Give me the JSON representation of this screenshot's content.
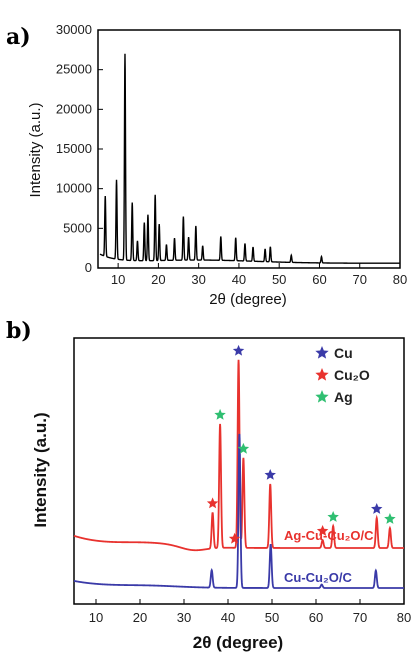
{
  "chart_data": [
    {
      "panel": "a)",
      "type": "line",
      "xlabel": "2θ (degree)",
      "ylabel": "Intensity (a.u.)",
      "xlim": [
        5,
        80
      ],
      "ylim": [
        0,
        30000
      ],
      "xticks": [
        10,
        20,
        30,
        40,
        50,
        60,
        70,
        80
      ],
      "yticks": [
        0,
        5000,
        10000,
        15000,
        20000,
        25000,
        30000
      ],
      "series": [
        {
          "color": "#000000",
          "peaks": [
            {
              "x": 6.8,
              "y": 7600
            },
            {
              "x": 9.6,
              "y": 10000
            },
            {
              "x": 11.7,
              "y": 26000
            },
            {
              "x": 13.5,
              "y": 7300
            },
            {
              "x": 14.8,
              "y": 2500
            },
            {
              "x": 16.5,
              "y": 4800
            },
            {
              "x": 17.4,
              "y": 5800
            },
            {
              "x": 19.2,
              "y": 8300
            },
            {
              "x": 20.2,
              "y": 4600
            },
            {
              "x": 22.0,
              "y": 2000
            },
            {
              "x": 24.0,
              "y": 2800
            },
            {
              "x": 26.2,
              "y": 5500
            },
            {
              "x": 27.5,
              "y": 2900
            },
            {
              "x": 29.3,
              "y": 4300
            },
            {
              "x": 31.0,
              "y": 1800
            },
            {
              "x": 35.5,
              "y": 3000
            },
            {
              "x": 39.2,
              "y": 2900
            },
            {
              "x": 41.5,
              "y": 2200
            },
            {
              "x": 43.5,
              "y": 1800
            },
            {
              "x": 46.5,
              "y": 1600
            },
            {
              "x": 47.8,
              "y": 1900
            },
            {
              "x": 53.0,
              "y": 900
            },
            {
              "x": 60.5,
              "y": 800
            }
          ]
        }
      ]
    },
    {
      "panel": "b)",
      "type": "line",
      "xlabel": "2θ (degree)",
      "ylabel": "Intensity (a.u.)",
      "xlim": [
        5,
        80
      ],
      "xticks": [
        10,
        20,
        30,
        40,
        50,
        60,
        70,
        80
      ],
      "legend_position": "top-right",
      "legend": [
        {
          "label": "Cu",
          "color": "#3a3aa8"
        },
        {
          "label": "Cu₂O",
          "color": "#e8322e"
        },
        {
          "label": "Ag",
          "color": "#2fbf71"
        }
      ],
      "series": [
        {
          "name": "Ag-Cu-Cu₂O/C",
          "color": "#e8322e",
          "peaks": [
            {
              "x": 36.5,
              "y": 0.18
            },
            {
              "x": 38.2,
              "y": 0.62
            },
            {
              "x": 42.4,
              "y": 0.94
            },
            {
              "x": 43.5,
              "y": 0.45
            },
            {
              "x": 49.6,
              "y": 0.32
            },
            {
              "x": 61.5,
              "y": 0.04
            },
            {
              "x": 63.9,
              "y": 0.11
            },
            {
              "x": 73.8,
              "y": 0.15
            },
            {
              "x": 76.8,
              "y": 0.1
            }
          ]
        },
        {
          "name": "Cu-Cu₂O/C",
          "color": "#3a3aa8",
          "peaks": [
            {
              "x": 36.3,
              "y": 0.1
            },
            {
              "x": 42.6,
              "y": 0.88
            },
            {
              "x": 49.7,
              "y": 0.25
            },
            {
              "x": 61.3,
              "y": 0.02
            },
            {
              "x": 73.6,
              "y": 0.1
            }
          ]
        }
      ],
      "markers": [
        {
          "x": 42.4,
          "label": "Cu",
          "color": "#3a3aa8",
          "on": "Ag-Cu-Cu₂O/C"
        },
        {
          "x": 49.6,
          "label": "Cu",
          "color": "#3a3aa8",
          "on": "Ag-Cu-Cu₂O/C"
        },
        {
          "x": 73.8,
          "label": "Cu",
          "color": "#3a3aa8",
          "on": "Ag-Cu-Cu₂O/C"
        },
        {
          "x": 36.5,
          "label": "Cu₂O",
          "color": "#e8322e",
          "on": "Ag-Cu-Cu₂O/C"
        },
        {
          "x": 41.5,
          "label": "Cu₂O",
          "color": "#e8322e",
          "on": "Ag-Cu-Cu₂O/C"
        },
        {
          "x": 61.5,
          "label": "Cu₂O",
          "color": "#e8322e",
          "on": "Ag-Cu-Cu₂O/C"
        },
        {
          "x": 38.2,
          "label": "Ag",
          "color": "#2fbf71",
          "on": "Ag-Cu-Cu₂O/C"
        },
        {
          "x": 43.5,
          "label": "Ag",
          "color": "#2fbf71",
          "on": "Ag-Cu-Cu₂O/C"
        },
        {
          "x": 63.9,
          "label": "Ag",
          "color": "#2fbf71",
          "on": "Ag-Cu-Cu₂O/C"
        },
        {
          "x": 76.8,
          "label": "Ag",
          "color": "#2fbf71",
          "on": "Ag-Cu-Cu₂O/C"
        }
      ]
    }
  ]
}
